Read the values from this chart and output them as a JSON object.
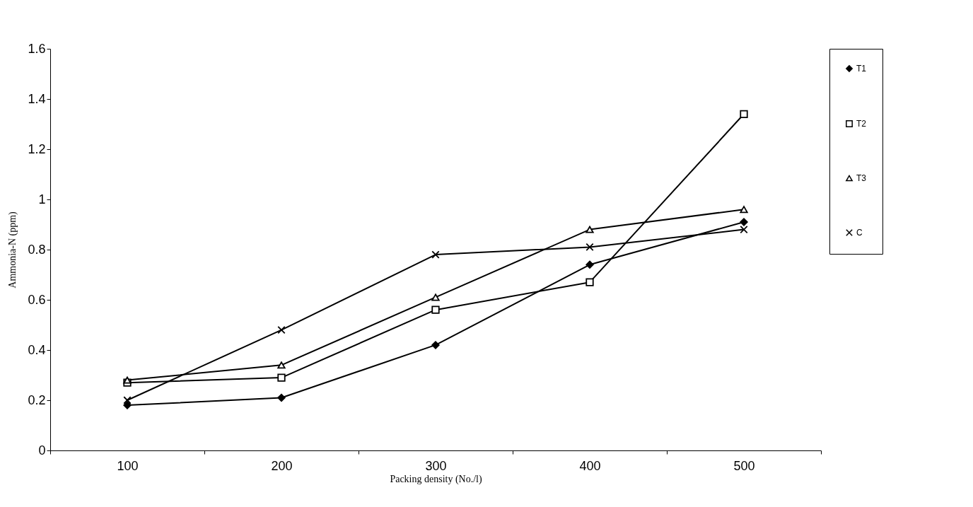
{
  "chart_data": {
    "type": "line",
    "xlabel": "Packing density (No./l)",
    "ylabel": "Ammonia-N (ppm)",
    "categories": [
      "100",
      "200",
      "300",
      "400",
      "500"
    ],
    "series": [
      {
        "name": "T1",
        "color": "#000000",
        "marker": "diamond",
        "values": [
          0.18,
          0.21,
          0.42,
          0.74,
          0.91
        ]
      },
      {
        "name": "T2",
        "color": "#000000",
        "marker": "square",
        "values": [
          0.27,
          0.29,
          0.56,
          0.67,
          1.34
        ]
      },
      {
        "name": "T3",
        "color": "#000000",
        "marker": "triangle",
        "values": [
          0.28,
          0.34,
          0.61,
          0.88,
          0.96
        ]
      },
      {
        "name": "C",
        "color": "#000000",
        "marker": "cross",
        "values": [
          0.2,
          0.48,
          0.78,
          0.81,
          0.88
        ]
      }
    ],
    "ylim": [
      0,
      1.6
    ],
    "yticks": [
      0,
      0.2,
      0.4,
      0.6,
      0.8,
      1,
      1.2,
      1.4,
      1.6
    ],
    "grid": false,
    "legend": "right",
    "line_style": "solid"
  }
}
